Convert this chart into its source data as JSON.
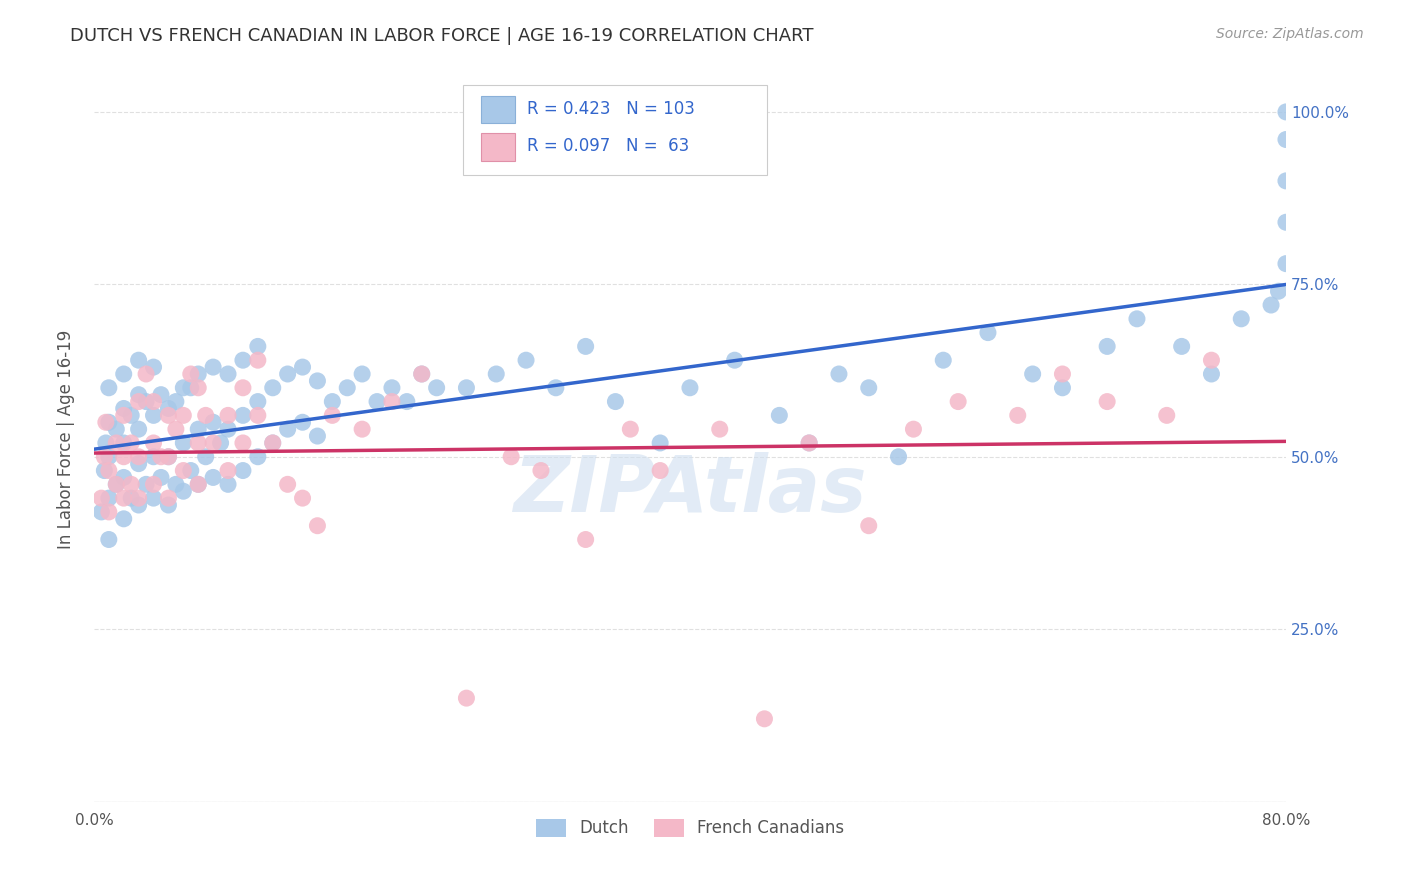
{
  "title": "DUTCH VS FRENCH CANADIAN IN LABOR FORCE | AGE 16-19 CORRELATION CHART",
  "source_text": "Source: ZipAtlas.com",
  "ylabel": "In Labor Force | Age 16-19",
  "xlim": [
    0.0,
    0.8
  ],
  "ylim": [
    0.0,
    1.05
  ],
  "x_ticks": [
    0.0,
    0.1,
    0.2,
    0.3,
    0.4,
    0.5,
    0.6,
    0.7,
    0.8
  ],
  "y_tick_positions": [
    0.0,
    0.25,
    0.5,
    0.75,
    1.0
  ],
  "y_tick_labels": [
    "",
    "25.0%",
    "50.0%",
    "75.0%",
    "100.0%"
  ],
  "dutch_color": "#a8c8e8",
  "french_color": "#f4b8c8",
  "dutch_line_color": "#3366cc",
  "french_line_color": "#cc3366",
  "watermark_color": "#d0dff0",
  "background_color": "#ffffff",
  "grid_color": "#e0e0e0",
  "title_color": "#333333",
  "axis_label_color": "#555555",
  "right_tick_color": "#4472c4",
  "dutch_x": [
    0.005,
    0.007,
    0.008,
    0.01,
    0.01,
    0.01,
    0.01,
    0.01,
    0.015,
    0.015,
    0.02,
    0.02,
    0.02,
    0.02,
    0.02,
    0.025,
    0.025,
    0.03,
    0.03,
    0.03,
    0.03,
    0.03,
    0.035,
    0.035,
    0.04,
    0.04,
    0.04,
    0.04,
    0.045,
    0.045,
    0.05,
    0.05,
    0.05,
    0.055,
    0.055,
    0.06,
    0.06,
    0.06,
    0.065,
    0.065,
    0.07,
    0.07,
    0.07,
    0.075,
    0.08,
    0.08,
    0.08,
    0.085,
    0.09,
    0.09,
    0.09,
    0.1,
    0.1,
    0.1,
    0.11,
    0.11,
    0.11,
    0.12,
    0.12,
    0.13,
    0.13,
    0.14,
    0.14,
    0.15,
    0.15,
    0.16,
    0.17,
    0.18,
    0.19,
    0.2,
    0.21,
    0.22,
    0.23,
    0.25,
    0.27,
    0.29,
    0.31,
    0.33,
    0.35,
    0.38,
    0.4,
    0.43,
    0.46,
    0.48,
    0.5,
    0.52,
    0.54,
    0.57,
    0.6,
    0.63,
    0.65,
    0.68,
    0.7,
    0.73,
    0.75,
    0.77,
    0.79,
    0.795,
    0.8,
    0.8,
    0.8,
    0.8,
    0.8
  ],
  "dutch_y": [
    0.42,
    0.48,
    0.52,
    0.38,
    0.44,
    0.5,
    0.55,
    0.6,
    0.46,
    0.54,
    0.41,
    0.47,
    0.52,
    0.57,
    0.62,
    0.44,
    0.56,
    0.43,
    0.49,
    0.54,
    0.59,
    0.64,
    0.46,
    0.58,
    0.44,
    0.5,
    0.56,
    0.63,
    0.47,
    0.59,
    0.43,
    0.5,
    0.57,
    0.46,
    0.58,
    0.45,
    0.52,
    0.6,
    0.48,
    0.6,
    0.46,
    0.54,
    0.62,
    0.5,
    0.47,
    0.55,
    0.63,
    0.52,
    0.46,
    0.54,
    0.62,
    0.48,
    0.56,
    0.64,
    0.5,
    0.58,
    0.66,
    0.52,
    0.6,
    0.54,
    0.62,
    0.55,
    0.63,
    0.53,
    0.61,
    0.58,
    0.6,
    0.62,
    0.58,
    0.6,
    0.58,
    0.62,
    0.6,
    0.6,
    0.62,
    0.64,
    0.6,
    0.66,
    0.58,
    0.52,
    0.6,
    0.64,
    0.56,
    0.52,
    0.62,
    0.6,
    0.5,
    0.64,
    0.68,
    0.62,
    0.6,
    0.66,
    0.7,
    0.66,
    0.62,
    0.7,
    0.72,
    0.74,
    0.78,
    0.84,
    0.9,
    0.96,
    1.0
  ],
  "french_x": [
    0.005,
    0.007,
    0.008,
    0.01,
    0.01,
    0.015,
    0.015,
    0.02,
    0.02,
    0.02,
    0.025,
    0.025,
    0.03,
    0.03,
    0.03,
    0.035,
    0.04,
    0.04,
    0.04,
    0.045,
    0.05,
    0.05,
    0.05,
    0.055,
    0.06,
    0.06,
    0.065,
    0.07,
    0.07,
    0.07,
    0.075,
    0.08,
    0.09,
    0.09,
    0.1,
    0.1,
    0.11,
    0.11,
    0.12,
    0.13,
    0.14,
    0.15,
    0.16,
    0.18,
    0.2,
    0.22,
    0.25,
    0.28,
    0.3,
    0.33,
    0.36,
    0.38,
    0.42,
    0.45,
    0.48,
    0.52,
    0.55,
    0.58,
    0.62,
    0.65,
    0.68,
    0.72,
    0.75
  ],
  "french_y": [
    0.44,
    0.5,
    0.55,
    0.42,
    0.48,
    0.46,
    0.52,
    0.44,
    0.5,
    0.56,
    0.46,
    0.52,
    0.44,
    0.5,
    0.58,
    0.62,
    0.46,
    0.52,
    0.58,
    0.5,
    0.44,
    0.5,
    0.56,
    0.54,
    0.48,
    0.56,
    0.62,
    0.46,
    0.52,
    0.6,
    0.56,
    0.52,
    0.48,
    0.56,
    0.52,
    0.6,
    0.56,
    0.64,
    0.52,
    0.46,
    0.44,
    0.4,
    0.56,
    0.54,
    0.58,
    0.62,
    0.15,
    0.5,
    0.48,
    0.38,
    0.54,
    0.48,
    0.54,
    0.12,
    0.52,
    0.4,
    0.54,
    0.58,
    0.56,
    0.62,
    0.58,
    0.56,
    0.64
  ]
}
